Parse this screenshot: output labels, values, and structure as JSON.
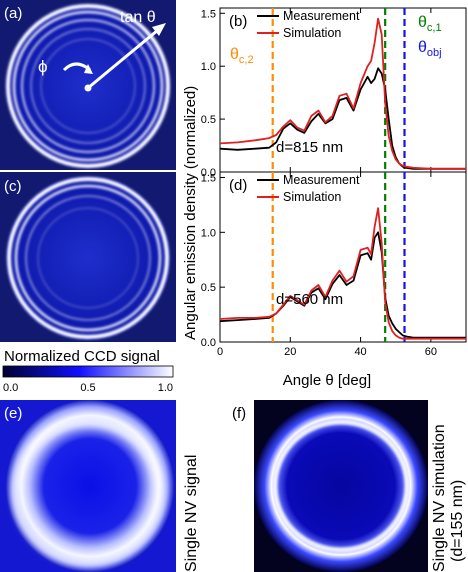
{
  "panels": {
    "a": {
      "label": "(a)",
      "tan_label": "tan θ",
      "phi_label": "ϕ"
    },
    "b": {
      "label": "(b)",
      "annotation": "d=815 nm"
    },
    "c": {
      "label": "(c)"
    },
    "d": {
      "label": "(d)",
      "annotation": "d=560 nm"
    },
    "e": {
      "label": "(e)",
      "side_label": "Single NV signal"
    },
    "f": {
      "label": "(f)",
      "side_label_1": "Single NV simulation",
      "side_label_2": "(d=155 nm)"
    }
  },
  "colorbar": {
    "title": "Normalized CCD signal",
    "ticks": [
      "0.0",
      "0.5",
      "1.0"
    ],
    "colors": [
      "#000030",
      "#1010ff",
      "#ffffff"
    ]
  },
  "markers": {
    "theta_c2": {
      "label": "θc,2",
      "main": "θ",
      "sub": "c,2",
      "value": 15,
      "color": "#ff8c00"
    },
    "theta_c1": {
      "label": "θc,1",
      "main": "θ",
      "sub": "c,1",
      "value": 47,
      "color": "#008000"
    },
    "theta_obj": {
      "label": "θobj",
      "main": "θ",
      "sub": "obj",
      "value": 52.5,
      "color": "#1414e6"
    }
  },
  "chart_data": [
    {
      "type": "line",
      "panel": "b",
      "xlim": [
        0,
        70
      ],
      "ylim": [
        0,
        1.55
      ],
      "xticks": [
        "0",
        "20",
        "40",
        "60"
      ],
      "yticks": [
        "0.0",
        "0.5",
        "1.0",
        "1.5"
      ],
      "legend": [
        "Measurement",
        "Simulation"
      ],
      "series": [
        {
          "name": "Measurement",
          "color": "#000000",
          "x": [
            0,
            5,
            10,
            14,
            16,
            18,
            20,
            22,
            24,
            26,
            28,
            30,
            32,
            34,
            36,
            38,
            40,
            42,
            43,
            44,
            45,
            46,
            47,
            48,
            49,
            50,
            51,
            52,
            53,
            55,
            60,
            70
          ],
          "y": [
            0.22,
            0.21,
            0.22,
            0.23,
            0.28,
            0.41,
            0.46,
            0.4,
            0.37,
            0.48,
            0.55,
            0.46,
            0.5,
            0.68,
            0.7,
            0.58,
            0.78,
            0.9,
            0.84,
            0.88,
            0.98,
            0.93,
            0.78,
            0.5,
            0.25,
            0.14,
            0.08,
            0.05,
            0.04,
            0.03,
            0.03,
            0.03
          ]
        },
        {
          "name": "Simulation",
          "color": "#e02020",
          "x": [
            0,
            5,
            10,
            14,
            16,
            18,
            20,
            22,
            24,
            26,
            28,
            30,
            32,
            34,
            36,
            38,
            40,
            42,
            43,
            44,
            45,
            46,
            47,
            48,
            49,
            50,
            51,
            52,
            53,
            55,
            60,
            70
          ],
          "y": [
            0.27,
            0.28,
            0.3,
            0.32,
            0.35,
            0.43,
            0.49,
            0.42,
            0.39,
            0.53,
            0.58,
            0.47,
            0.53,
            0.72,
            0.74,
            0.6,
            0.84,
            1.0,
            1.05,
            1.22,
            1.45,
            1.3,
            0.65,
            0.34,
            0.2,
            0.12,
            0.08,
            0.06,
            0.05,
            0.04,
            0.03,
            0.03
          ]
        }
      ]
    },
    {
      "type": "line",
      "panel": "d",
      "xlim": [
        0,
        70
      ],
      "ylim": [
        0,
        1.55
      ],
      "xticks": [
        "0",
        "20",
        "40",
        "60"
      ],
      "yticks": [
        "0.0",
        "0.5",
        "1.0",
        "1.5"
      ],
      "xlabel": "Angle θ [deg]",
      "ylabel": "Angular emission density (normalized)",
      "legend": [
        "Measurement",
        "Simulation"
      ],
      "series": [
        {
          "name": "Measurement",
          "color": "#000000",
          "x": [
            0,
            5,
            10,
            14,
            16,
            18,
            20,
            22,
            24,
            26,
            28,
            30,
            32,
            34,
            36,
            38,
            40,
            42,
            43,
            44,
            45,
            46,
            47,
            48,
            49,
            50,
            51,
            52,
            53,
            55,
            60,
            70
          ],
          "y": [
            0.19,
            0.2,
            0.21,
            0.22,
            0.26,
            0.33,
            0.41,
            0.37,
            0.33,
            0.45,
            0.49,
            0.39,
            0.53,
            0.61,
            0.52,
            0.56,
            0.79,
            0.81,
            0.75,
            0.95,
            1.0,
            0.82,
            0.4,
            0.24,
            0.17,
            0.12,
            0.09,
            0.06,
            0.05,
            0.04,
            0.04,
            0.04
          ]
        },
        {
          "name": "Simulation",
          "color": "#e02020",
          "x": [
            0,
            5,
            10,
            14,
            16,
            18,
            20,
            22,
            24,
            26,
            28,
            30,
            32,
            34,
            36,
            38,
            40,
            42,
            43,
            44,
            45,
            46,
            47,
            48,
            49,
            50,
            51,
            52,
            53,
            55,
            60,
            70
          ],
          "y": [
            0.21,
            0.22,
            0.22,
            0.23,
            0.26,
            0.34,
            0.42,
            0.38,
            0.34,
            0.47,
            0.52,
            0.41,
            0.56,
            0.65,
            0.55,
            0.6,
            0.84,
            0.86,
            0.8,
            1.05,
            1.22,
            0.9,
            0.36,
            0.18,
            0.1,
            0.06,
            0.04,
            0.03,
            0.03,
            0.03,
            0.03,
            0.03
          ]
        }
      ]
    }
  ]
}
